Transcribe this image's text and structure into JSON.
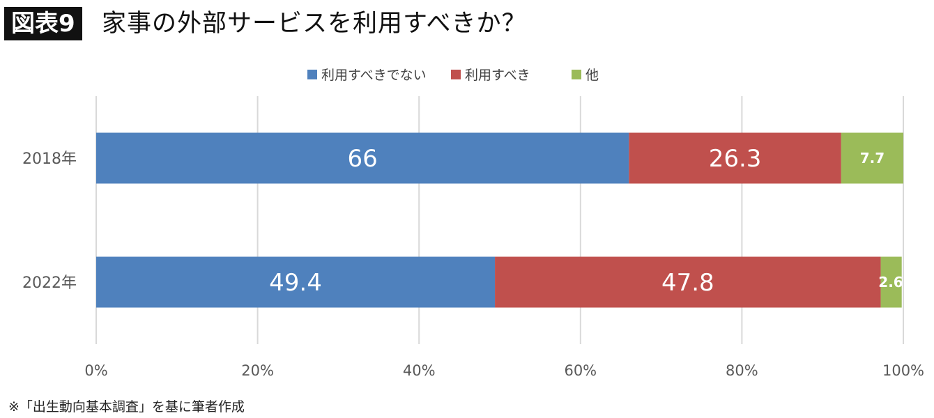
{
  "header": {
    "figure_label": "図表9",
    "title": "家事の外部サービスを利用すべきか？"
  },
  "chart_data": {
    "type": "bar",
    "orientation": "horizontal",
    "stacked": "percent",
    "categories": [
      "2018年",
      "2022年"
    ],
    "series": [
      {
        "name": "利用すべきでない",
        "values": [
          66,
          49.4
        ],
        "labels": [
          "66",
          "49.4"
        ],
        "color": "#4F81BD"
      },
      {
        "name": "利用すべき",
        "values": [
          26.3,
          47.8
        ],
        "labels": [
          "26.3",
          "47.8"
        ],
        "color": "#C0504D"
      },
      {
        "name": "他",
        "values": [
          7.7,
          2.6
        ],
        "labels": [
          "7.7",
          "2.6"
        ],
        "color": "#9BBB59"
      }
    ],
    "xlim": [
      0,
      100
    ],
    "x_ticks": [
      "0%",
      "20%",
      "40%",
      "60%",
      "80%",
      "100%"
    ],
    "grid": true,
    "legend_position": "top"
  },
  "footnote": "※「出生動向基本調査」を基に筆者作成"
}
